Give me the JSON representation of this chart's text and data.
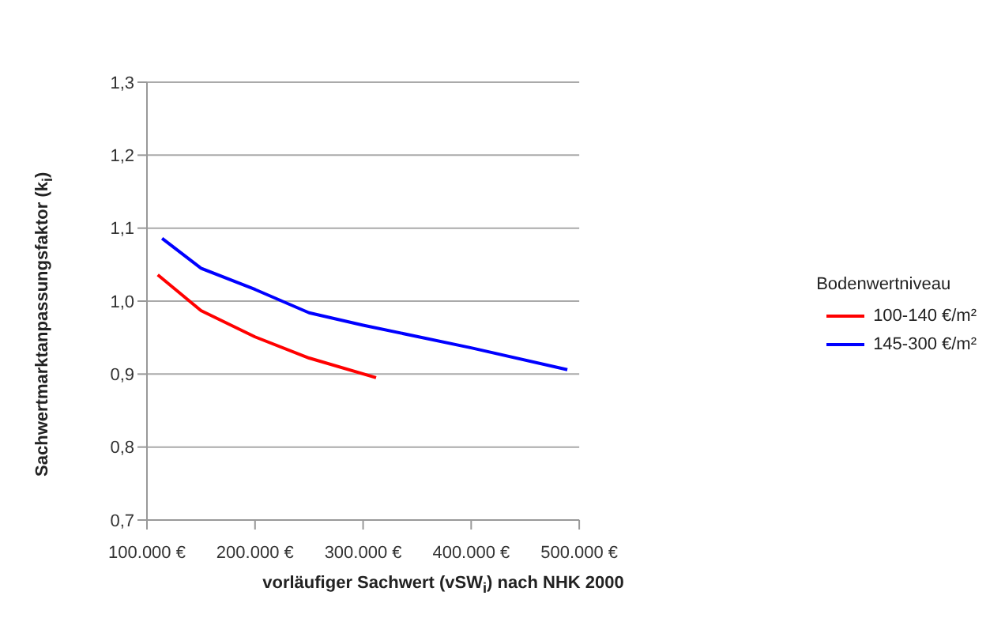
{
  "chart_data": {
    "type": "line",
    "xlabel": "vorläufiger Sachwert (vSW$_{i}$) nach NHK 2000",
    "ylabel": "Sachwertmarktanpassungsfaktor  (k$_{i}$)",
    "legend_title": "Bodenwertniveau",
    "xlim": [
      100000,
      500000
    ],
    "xticks": [
      {
        "value": 100000,
        "label": "100.000 €"
      },
      {
        "value": 200000,
        "label": "200.000 €"
      },
      {
        "value": 300000,
        "label": "300.000 €"
      },
      {
        "value": 400000,
        "label": "400.000 €"
      },
      {
        "value": 500000,
        "label": "500.000 €"
      }
    ],
    "ylim": [
      0.7,
      1.3
    ],
    "yticks": [
      {
        "value": 0.7,
        "label": "0,7"
      },
      {
        "value": 0.8,
        "label": "0,8"
      },
      {
        "value": 0.9,
        "label": "0,9"
      },
      {
        "value": 1.0,
        "label": "1,0"
      },
      {
        "value": 1.1,
        "label": "1,1"
      },
      {
        "value": 1.2,
        "label": "1,2"
      },
      {
        "value": 1.3,
        "label": "1,3"
      }
    ],
    "grid": "y",
    "legend": "right",
    "marker": "none",
    "line_style": "solid",
    "series": [
      {
        "name": "100-140 €/m²",
        "color": "#ff0000",
        "x": [
          110000,
          150000,
          200000,
          250000,
          312000
        ],
        "values": [
          1.036,
          0.987,
          0.951,
          0.922,
          0.895
        ]
      },
      {
        "name": "145-300 €/m²",
        "color": "#0000ff",
        "x": [
          114000,
          150000,
          200000,
          250000,
          300000,
          400000,
          489000
        ],
        "values": [
          1.086,
          1.045,
          1.016,
          0.984,
          0.967,
          0.936,
          0.906
        ]
      }
    ]
  }
}
